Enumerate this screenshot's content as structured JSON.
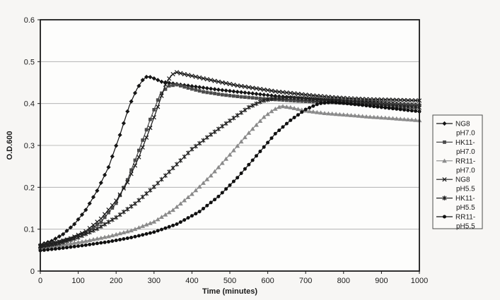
{
  "figure": {
    "background": "#f7f6f4",
    "plot_fill": "#fdfdfc",
    "axis_color": "#1a1a1a",
    "grid_color": "#a8a8a8",
    "legend_border": "#4d4d4d",
    "legend_fill": "#fbfaf8"
  },
  "chart_data": {
    "type": "line",
    "title": "",
    "xlabel": "Time (minutes)",
    "ylabel": "O.D.600",
    "xlim": [
      0,
      1000
    ],
    "ylim": [
      0,
      0.6
    ],
    "x_ticks": [
      0,
      100,
      200,
      300,
      400,
      500,
      600,
      700,
      800,
      900,
      1000
    ],
    "x_tick_labels": [
      "0",
      "100",
      "200",
      "300",
      "400",
      "500",
      "600",
      "700",
      "800",
      "900",
      "1000"
    ],
    "y_ticks": [
      0,
      0.1,
      0.2,
      0.3,
      0.4,
      0.5,
      0.6
    ],
    "y_tick_labels": [
      "0",
      "0.1",
      "0.2",
      "0.3",
      "0.4",
      "0.5",
      "0.6"
    ],
    "grid": "horizontal-only",
    "legend_position": "right-outside",
    "marker_interval_minutes": 10,
    "series": [
      {
        "name": "NG8 pH7.0",
        "legend_lines": [
          "NG8",
          "pH7.0"
        ],
        "marker": "diamond",
        "color": "#151515",
        "points": [
          [
            0,
            0.063
          ],
          [
            30,
            0.072
          ],
          [
            60,
            0.088
          ],
          [
            90,
            0.112
          ],
          [
            120,
            0.146
          ],
          [
            150,
            0.192
          ],
          [
            180,
            0.248
          ],
          [
            210,
            0.325
          ],
          [
            235,
            0.395
          ],
          [
            255,
            0.435
          ],
          [
            270,
            0.456
          ],
          [
            282,
            0.465
          ],
          [
            295,
            0.462
          ],
          [
            320,
            0.452
          ],
          [
            370,
            0.445
          ],
          [
            420,
            0.439
          ],
          [
            470,
            0.433
          ],
          [
            520,
            0.428
          ],
          [
            570,
            0.423
          ],
          [
            620,
            0.418
          ],
          [
            670,
            0.414
          ],
          [
            720,
            0.411
          ],
          [
            770,
            0.408
          ],
          [
            820,
            0.405
          ],
          [
            870,
            0.403
          ],
          [
            920,
            0.401
          ],
          [
            960,
            0.399
          ],
          [
            1000,
            0.397
          ]
        ]
      },
      {
        "name": "HK11- pH7.0",
        "legend_lines": [
          "HK11-",
          "pH7.0"
        ],
        "marker": "square",
        "color": "#4a4a4a",
        "points": [
          [
            0,
            0.061
          ],
          [
            40,
            0.068
          ],
          [
            80,
            0.078
          ],
          [
            120,
            0.092
          ],
          [
            160,
            0.117
          ],
          [
            200,
            0.162
          ],
          [
            230,
            0.218
          ],
          [
            260,
            0.288
          ],
          [
            290,
            0.362
          ],
          [
            315,
            0.42
          ],
          [
            338,
            0.442
          ],
          [
            360,
            0.445
          ],
          [
            390,
            0.437
          ],
          [
            430,
            0.428
          ],
          [
            480,
            0.421
          ],
          [
            530,
            0.416
          ],
          [
            580,
            0.412
          ],
          [
            630,
            0.409
          ],
          [
            680,
            0.406
          ],
          [
            730,
            0.404
          ],
          [
            780,
            0.402
          ],
          [
            830,
            0.4
          ],
          [
            880,
            0.399
          ],
          [
            930,
            0.398
          ],
          [
            1000,
            0.396
          ]
        ]
      },
      {
        "name": "RR11- pH7.0",
        "legend_lines": [
          "RR11-",
          "pH7.0"
        ],
        "marker": "triangle",
        "color": "#8a8a8a",
        "points": [
          [
            0,
            0.056
          ],
          [
            60,
            0.063
          ],
          [
            120,
            0.072
          ],
          [
            180,
            0.083
          ],
          [
            240,
            0.097
          ],
          [
            300,
            0.118
          ],
          [
            350,
            0.146
          ],
          [
            400,
            0.184
          ],
          [
            450,
            0.228
          ],
          [
            500,
            0.278
          ],
          [
            550,
            0.33
          ],
          [
            590,
            0.368
          ],
          [
            615,
            0.385
          ],
          [
            635,
            0.394
          ],
          [
            660,
            0.391
          ],
          [
            700,
            0.383
          ],
          [
            750,
            0.377
          ],
          [
            810,
            0.373
          ],
          [
            860,
            0.369
          ],
          [
            910,
            0.366
          ],
          [
            955,
            0.363
          ],
          [
            1000,
            0.36
          ]
        ]
      },
      {
        "name": "NG8 pH5.5",
        "legend_lines": [
          "NG8",
          "pH5.5"
        ],
        "marker": "x",
        "color": "#1a1a1a",
        "points": [
          [
            0,
            0.06
          ],
          [
            40,
            0.067
          ],
          [
            80,
            0.078
          ],
          [
            120,
            0.095
          ],
          [
            160,
            0.125
          ],
          [
            200,
            0.168
          ],
          [
            230,
            0.212
          ],
          [
            260,
            0.272
          ],
          [
            290,
            0.342
          ],
          [
            310,
            0.392
          ],
          [
            330,
            0.445
          ],
          [
            345,
            0.467
          ],
          [
            358,
            0.475
          ],
          [
            380,
            0.47
          ],
          [
            420,
            0.462
          ],
          [
            470,
            0.452
          ],
          [
            520,
            0.443
          ],
          [
            570,
            0.436
          ],
          [
            620,
            0.429
          ],
          [
            670,
            0.424
          ],
          [
            720,
            0.419
          ],
          [
            770,
            0.415
          ],
          [
            820,
            0.412
          ],
          [
            870,
            0.41
          ],
          [
            920,
            0.409
          ],
          [
            1000,
            0.407
          ]
        ]
      },
      {
        "name": "HK11- pH5.5",
        "legend_lines": [
          "HK11-",
          "pH5.5"
        ],
        "marker": "star",
        "color": "#222222",
        "points": [
          [
            0,
            0.058
          ],
          [
            50,
            0.066
          ],
          [
            100,
            0.08
          ],
          [
            150,
            0.101
          ],
          [
            200,
            0.128
          ],
          [
            250,
            0.161
          ],
          [
            300,
            0.201
          ],
          [
            350,
            0.246
          ],
          [
            400,
            0.291
          ],
          [
            450,
            0.326
          ],
          [
            500,
            0.359
          ],
          [
            550,
            0.391
          ],
          [
            585,
            0.406
          ],
          [
            620,
            0.413
          ],
          [
            660,
            0.414
          ],
          [
            700,
            0.411
          ],
          [
            750,
            0.407
          ],
          [
            800,
            0.403
          ],
          [
            850,
            0.399
          ],
          [
            900,
            0.396
          ],
          [
            950,
            0.393
          ],
          [
            1000,
            0.39
          ]
        ]
      },
      {
        "name": "RR11- pH5.5",
        "legend_lines": [
          "RR11-",
          "pH5.5"
        ],
        "marker": "circle",
        "color": "#101010",
        "points": [
          [
            0,
            0.049
          ],
          [
            60,
            0.055
          ],
          [
            120,
            0.062
          ],
          [
            180,
            0.07
          ],
          [
            240,
            0.08
          ],
          [
            300,
            0.093
          ],
          [
            360,
            0.112
          ],
          [
            420,
            0.142
          ],
          [
            470,
            0.178
          ],
          [
            520,
            0.223
          ],
          [
            570,
            0.275
          ],
          [
            620,
            0.328
          ],
          [
            660,
            0.36
          ],
          [
            700,
            0.386
          ],
          [
            735,
            0.4
          ],
          [
            770,
            0.403
          ],
          [
            810,
            0.4
          ],
          [
            860,
            0.395
          ],
          [
            910,
            0.39
          ],
          [
            960,
            0.385
          ],
          [
            1000,
            0.381
          ]
        ]
      }
    ]
  }
}
